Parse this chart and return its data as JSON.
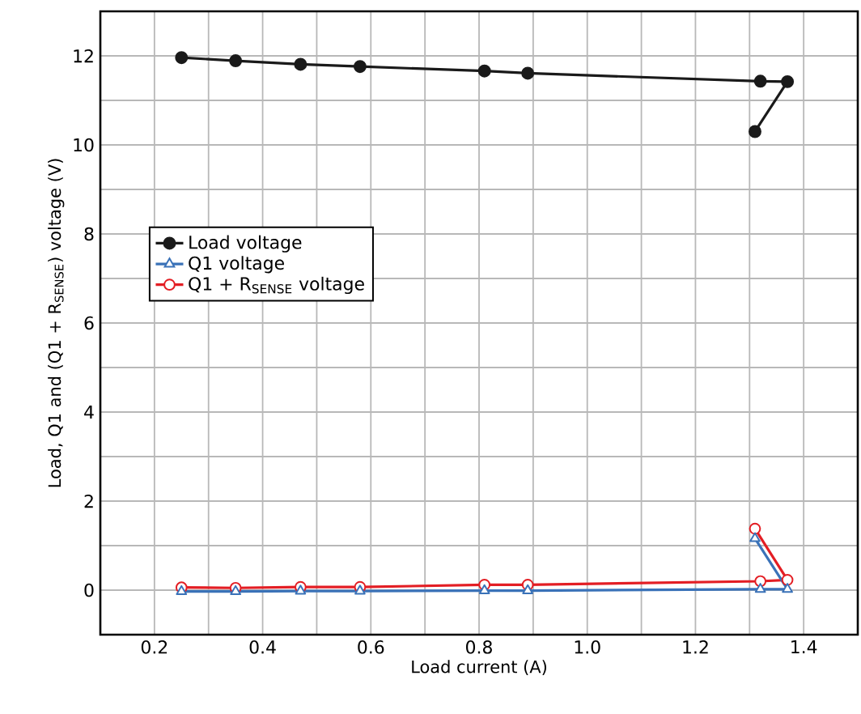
{
  "chart_data": {
    "type": "line",
    "xlabel": "Load current (A)",
    "ylabel": "Load, Q1 and (Q1 + R$_{SENSE}$) voltage (V)",
    "x": [
      0.25,
      0.35,
      0.47,
      0.58,
      0.81,
      0.89,
      1.32,
      1.37,
      1.31
    ],
    "series": [
      {
        "name": "Load voltage",
        "color": "#1a1a1a",
        "marker": "circle",
        "values": [
          11.96,
          11.89,
          11.81,
          11.76,
          11.66,
          11.61,
          11.43,
          11.42,
          10.3
        ]
      },
      {
        "name": "Q1 voltage",
        "color": "#3a72b8",
        "marker": "triangle",
        "values": [
          -0.03,
          -0.03,
          -0.02,
          -0.02,
          -0.01,
          -0.01,
          0.02,
          0.02,
          1.16
        ]
      },
      {
        "name": "Q1 + R$_{SENSE}$ voltage",
        "color": "#e31e24",
        "marker": "circle_open",
        "values": [
          0.06,
          0.05,
          0.07,
          0.07,
          0.12,
          0.12,
          0.2,
          0.23,
          1.38
        ]
      }
    ],
    "xlim": [
      0.1,
      1.5
    ],
    "ylim": [
      -1,
      13
    ],
    "xticks": [
      0.2,
      0.4,
      0.6,
      0.8,
      {
        "value": 1,
        "label": "1.0"
      },
      1.2,
      1.4
    ],
    "yticks": [
      0,
      2,
      4,
      6,
      8,
      10,
      12
    ],
    "grid": true,
    "legend": "left",
    "line_style": "solid"
  }
}
